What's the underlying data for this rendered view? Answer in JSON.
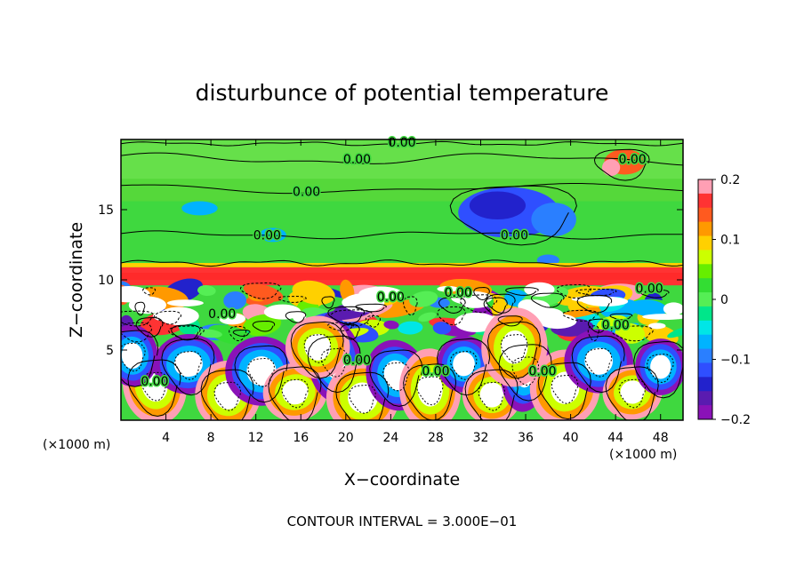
{
  "chart_data": {
    "type": "heatmap",
    "title": "disturbunce of potential temperature",
    "xlabel": "X−coordinate",
    "ylabel": "Z−coordinate",
    "x_unit": "(×1000 m)",
    "y_unit": "(×1000 m)",
    "xlim": [
      0,
      50
    ],
    "ylim": [
      0,
      20
    ],
    "x_ticks": [
      4,
      8,
      12,
      16,
      20,
      24,
      28,
      32,
      36,
      40,
      44,
      48
    ],
    "y_ticks": [
      5,
      10,
      15
    ],
    "colorbar": {
      "range": [
        -0.2,
        0.2
      ],
      "tick_values": [
        0.2,
        0.1,
        0,
        -0.1,
        -0.2
      ],
      "tick_labels": [
        "0.2",
        "0.1",
        "0",
        "−0.1",
        "−0.2"
      ],
      "colors": [
        "#ff9fb4",
        "#ff3333",
        "#ff5a1f",
        "#ff9900",
        "#ffd000",
        "#ccff00",
        "#66ee00",
        "#33dd33",
        "#55ee55",
        "#00e68a",
        "#00e6e6",
        "#00b3ff",
        "#2a7fff",
        "#2f4fff",
        "#2222cc",
        "#5a1bb0",
        "#8a12b8"
      ]
    },
    "contour_labels": [
      "0.00",
      "0.00",
      "0.00",
      "0.00",
      "0.00",
      "0.00",
      "0.00",
      "0.00",
      "0.00",
      "0.00",
      "0.00",
      "0.00",
      "0.00",
      "0.00",
      "0.00"
    ],
    "field_features": [
      {
        "name": "inversion-band",
        "z_range": [
          9.6,
          10.9
        ],
        "value": 0.15
      },
      {
        "name": "upper-negative-patch",
        "x": 34.5,
        "z": 14.8,
        "value": -0.12
      },
      {
        "name": "upper-positive-patch",
        "x": 44.5,
        "z": 18.3,
        "value": 0.15
      },
      {
        "name": "upper-background",
        "value": 0.0
      },
      {
        "name": "lower-turbulent-layer",
        "z_range": [
          0,
          9.5
        ],
        "value_range": [
          -0.2,
          0.2
        ]
      }
    ],
    "footer": "CONTOUR INTERVAL = 3.000E−01"
  }
}
